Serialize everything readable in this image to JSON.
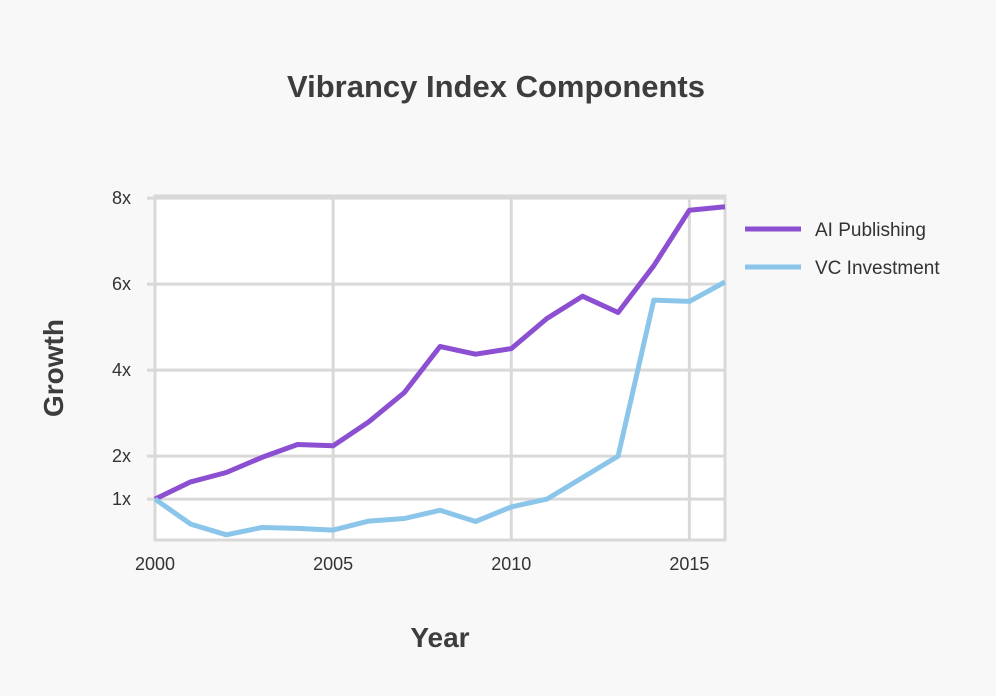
{
  "chart_data": {
    "type": "line",
    "title": "Vibrancy Index Components",
    "xlabel": "Year",
    "ylabel": "Growth",
    "xlim": [
      2000,
      2016
    ],
    "ylim": [
      0.05,
      8.05
    ],
    "x_ticks": [
      2000,
      2005,
      2010,
      2015
    ],
    "y_ticks": [
      1,
      2,
      4,
      6,
      8
    ],
    "y_tick_labels": [
      "1x",
      "2x",
      "4x",
      "6x",
      "8x"
    ],
    "grid": true,
    "legend_position": "right",
    "x": [
      2000,
      2001,
      2002,
      2003,
      2004,
      2005,
      2006,
      2007,
      2008,
      2009,
      2010,
      2011,
      2012,
      2013,
      2014,
      2015,
      2016
    ],
    "series": [
      {
        "name": "AI Publishing",
        "color": "#8c4fd1",
        "values": [
          1.0,
          1.4,
          1.62,
          1.97,
          2.27,
          2.24,
          2.8,
          3.48,
          4.55,
          4.37,
          4.5,
          5.2,
          5.72,
          5.34,
          6.43,
          7.72,
          7.8
        ]
      },
      {
        "name": "VC Investment",
        "color": "#8bc6ea",
        "values": [
          1.0,
          0.42,
          0.17,
          0.34,
          0.32,
          0.28,
          0.49,
          0.55,
          0.74,
          0.48,
          0.82,
          1.0,
          1.5,
          2.0,
          5.63,
          5.6,
          6.05
        ]
      }
    ]
  }
}
